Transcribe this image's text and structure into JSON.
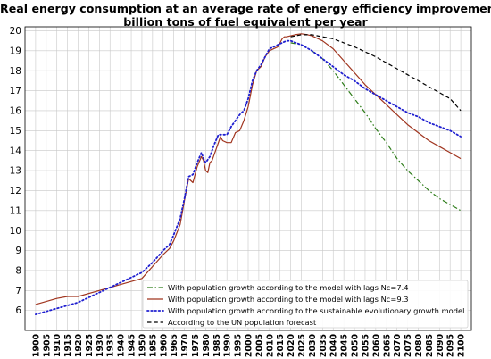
{
  "chart_data": {
    "type": "line",
    "title": "Real energy consumption at an average rate of energy efficiency improvement,",
    "subtitle": "billion tons of fuel equivalent per year",
    "xlabel": "",
    "ylabel": "",
    "xlim": [
      1895,
      2105
    ],
    "ylim": [
      5,
      20.2
    ],
    "yticks": [
      6,
      7,
      8,
      9,
      10,
      11,
      12,
      13,
      14,
      15,
      16,
      17,
      18,
      19,
      20
    ],
    "xticks": [
      1900,
      1905,
      1910,
      1915,
      1920,
      1925,
      1930,
      1935,
      1940,
      1945,
      1950,
      1955,
      1960,
      1965,
      1970,
      1975,
      1980,
      1985,
      1990,
      1995,
      2000,
      2005,
      2010,
      2015,
      2020,
      2025,
      2030,
      2035,
      2040,
      2045,
      2050,
      2055,
      2060,
      2065,
      2070,
      2075,
      2080,
      2085,
      2090,
      2095,
      2100
    ],
    "grid": true,
    "legend_position": "lower-right",
    "series": [
      {
        "name": "With population growth according to the model with lags Nc=7.4",
        "color": "#2e7d1a",
        "style": "dashdot",
        "x": [
          2020,
          2025,
          2030,
          2035,
          2040,
          2045,
          2050,
          2055,
          2060,
          2065,
          2070,
          2075,
          2080,
          2085,
          2090,
          2095,
          2100
        ],
        "y": [
          19.4,
          19.3,
          19.0,
          18.6,
          18.0,
          17.3,
          16.6,
          15.9,
          15.1,
          14.4,
          13.6,
          13.0,
          12.5,
          12.0,
          11.6,
          11.3,
          11.0
        ]
      },
      {
        "name": "With population growth according to the model with lags  Nc=9.3",
        "color": "#a0351f",
        "style": "solid",
        "x": [
          1900,
          1910,
          1915,
          1920,
          1930,
          1940,
          1950,
          1955,
          1960,
          1963,
          1965,
          1968,
          1970,
          1972,
          1974,
          1976,
          1978,
          1979,
          1980,
          1981,
          1982,
          1983,
          1985,
          1987,
          1988,
          1990,
          1992,
          1994,
          1996,
          1998,
          2000,
          2002,
          2004,
          2006,
          2008,
          2010,
          2012,
          2014,
          2016,
          2017,
          2018,
          2020,
          2022,
          2025,
          2028,
          2030,
          2035,
          2040,
          2045,
          2050,
          2055,
          2060,
          2065,
          2070,
          2075,
          2080,
          2085,
          2090,
          2095,
          2100
        ],
        "y": [
          6.3,
          6.6,
          6.7,
          6.7,
          7.0,
          7.3,
          7.6,
          8.2,
          8.8,
          9.1,
          9.5,
          10.3,
          11.5,
          12.6,
          12.4,
          13.2,
          13.7,
          13.5,
          13.0,
          12.9,
          13.4,
          13.5,
          14.1,
          14.7,
          14.5,
          14.4,
          14.4,
          14.9,
          15.0,
          15.5,
          16.2,
          17.3,
          18.0,
          18.2,
          18.7,
          19.0,
          19.1,
          19.2,
          19.6,
          19.7,
          19.7,
          19.75,
          19.8,
          19.85,
          19.8,
          19.75,
          19.5,
          19.1,
          18.5,
          17.9,
          17.3,
          16.8,
          16.3,
          15.8,
          15.3,
          14.9,
          14.5,
          14.2,
          13.9,
          13.6
        ]
      },
      {
        "name": "With population growth according to the sustainable evolutionary growth model",
        "color": "#1f1fd0",
        "style": "dotted",
        "x": [
          1900,
          1910,
          1920,
          1930,
          1940,
          1950,
          1955,
          1960,
          1963,
          1965,
          1968,
          1970,
          1972,
          1974,
          1976,
          1978,
          1979,
          1980,
          1982,
          1984,
          1986,
          1988,
          1990,
          1992,
          1994,
          1996,
          1998,
          2000,
          2002,
          2004,
          2006,
          2008,
          2010,
          2012,
          2014,
          2016,
          2018,
          2020,
          2025,
          2030,
          2035,
          2040,
          2045,
          2050,
          2055,
          2060,
          2065,
          2070,
          2075,
          2080,
          2085,
          2090,
          2095,
          2100
        ],
        "y": [
          5.8,
          6.1,
          6.4,
          6.9,
          7.4,
          7.9,
          8.4,
          9.0,
          9.3,
          9.8,
          10.6,
          11.6,
          12.7,
          12.8,
          13.4,
          13.9,
          13.6,
          13.4,
          13.7,
          14.3,
          14.8,
          14.8,
          14.8,
          15.2,
          15.5,
          15.8,
          16.0,
          16.6,
          17.5,
          18.0,
          18.3,
          18.7,
          19.1,
          19.2,
          19.3,
          19.4,
          19.5,
          19.5,
          19.3,
          19.0,
          18.6,
          18.2,
          17.8,
          17.5,
          17.1,
          16.8,
          16.5,
          16.2,
          15.9,
          15.7,
          15.4,
          15.2,
          15.0,
          14.7
        ]
      },
      {
        "name": "According to the UN population forecast",
        "color": "#000000",
        "style": "dashed",
        "x": [
          2020,
          2025,
          2030,
          2035,
          2040,
          2045,
          2050,
          2055,
          2060,
          2065,
          2070,
          2075,
          2080,
          2085,
          2090,
          2095,
          2100
        ],
        "y": [
          19.7,
          19.8,
          19.8,
          19.7,
          19.6,
          19.4,
          19.2,
          18.95,
          18.7,
          18.4,
          18.1,
          17.8,
          17.5,
          17.2,
          16.9,
          16.6,
          16.0
        ]
      }
    ]
  }
}
